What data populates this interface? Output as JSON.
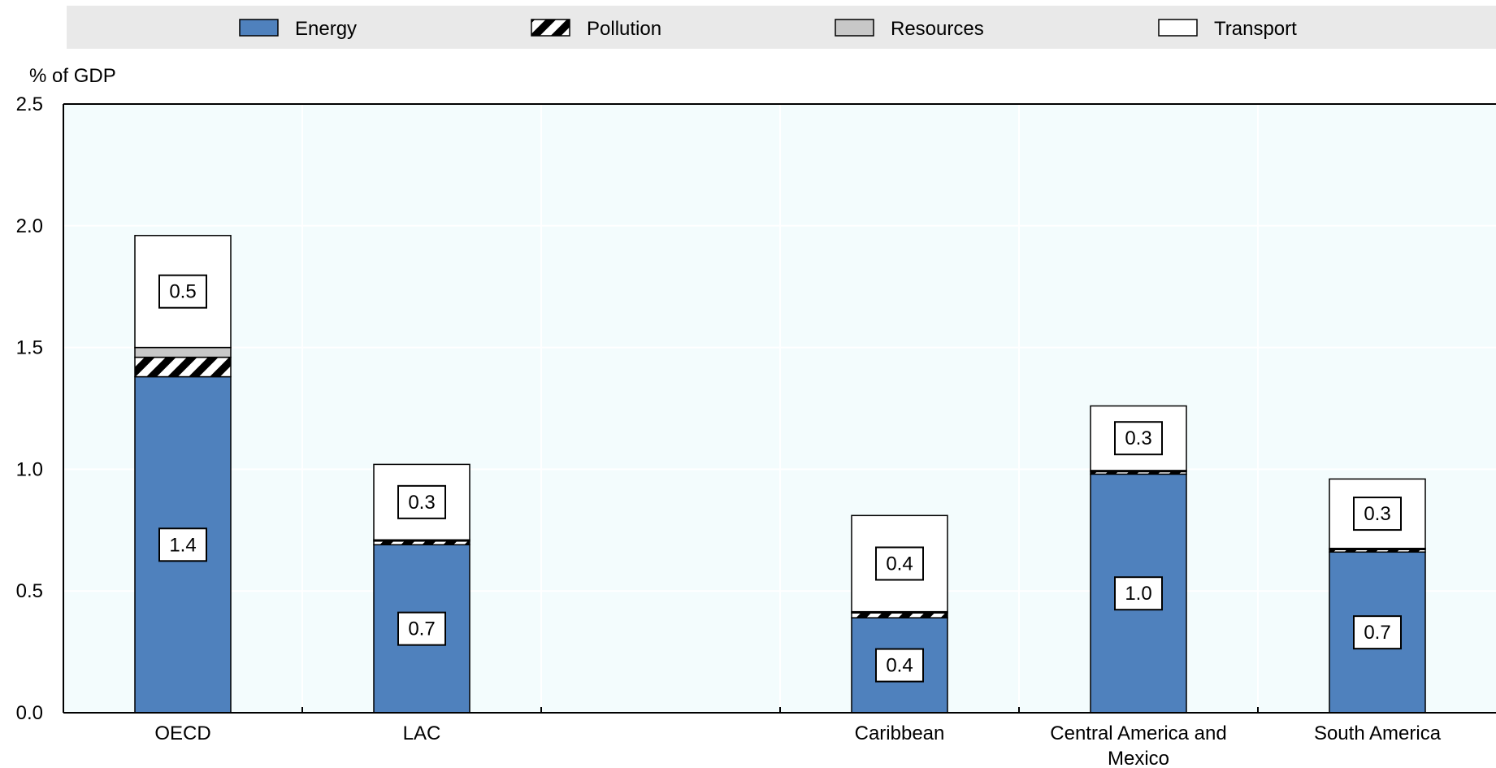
{
  "chart_data": {
    "type": "bar",
    "stacked": true,
    "ylabel": "% of GDP",
    "ylim": [
      0,
      2.5
    ],
    "yticks": [
      "0.0",
      "0.5",
      "1.0",
      "1.5",
      "2.0",
      "2.5"
    ],
    "grid": true,
    "legend_position": "top",
    "categories": [
      {
        "label": "OECD",
        "label_lines": [
          "OECD"
        ]
      },
      {
        "label": "LAC",
        "label_lines": [
          "LAC"
        ]
      },
      {
        "label": "",
        "label_lines": []
      },
      {
        "label": "Caribbean",
        "label_lines": [
          "Caribbean"
        ]
      },
      {
        "label": "Central America and Mexico",
        "label_lines": [
          "Central America and",
          "Mexico"
        ]
      },
      {
        "label": "South America",
        "label_lines": [
          "South America"
        ]
      }
    ],
    "series": [
      {
        "name": "Energy",
        "color": "#4f81bd",
        "pattern": "solid",
        "values": [
          1.38,
          0.69,
          null,
          0.39,
          0.98,
          0.66
        ]
      },
      {
        "name": "Pollution",
        "color": "#000000",
        "pattern": "hatch",
        "values": [
          0.08,
          0.015,
          null,
          0.02,
          0.01,
          0.01
        ]
      },
      {
        "name": "Resources",
        "color": "#c8c8c8",
        "pattern": "solid",
        "values": [
          0.04,
          0.005,
          null,
          0.005,
          0.005,
          0.005
        ]
      },
      {
        "name": "Transport",
        "color": "#ffffff",
        "pattern": "solid",
        "values": [
          0.46,
          0.31,
          null,
          0.395,
          0.265,
          0.285
        ]
      }
    ],
    "data_labels": [
      {
        "category": "OECD",
        "series": "Energy",
        "text": "1.4"
      },
      {
        "category": "OECD",
        "series": "Transport",
        "text": "0.5"
      },
      {
        "category": "LAC",
        "series": "Energy",
        "text": "0.7"
      },
      {
        "category": "LAC",
        "series": "Transport",
        "text": "0.3"
      },
      {
        "category": "Caribbean",
        "series": "Energy",
        "text": "0.4"
      },
      {
        "category": "Caribbean",
        "series": "Transport",
        "text": "0.4"
      },
      {
        "category": "Central America and Mexico",
        "series": "Energy",
        "text": "1.0"
      },
      {
        "category": "Central America and Mexico",
        "series": "Transport",
        "text": "0.3"
      },
      {
        "category": "South America",
        "series": "Energy",
        "text": "0.7"
      },
      {
        "category": "South America",
        "series": "Transport",
        "text": "0.3"
      }
    ],
    "colors": {
      "plot_background": "#f3fcfd",
      "legend_background": "#e9e9e9",
      "gridline": "#ffffff",
      "axis": "#000000"
    }
  }
}
